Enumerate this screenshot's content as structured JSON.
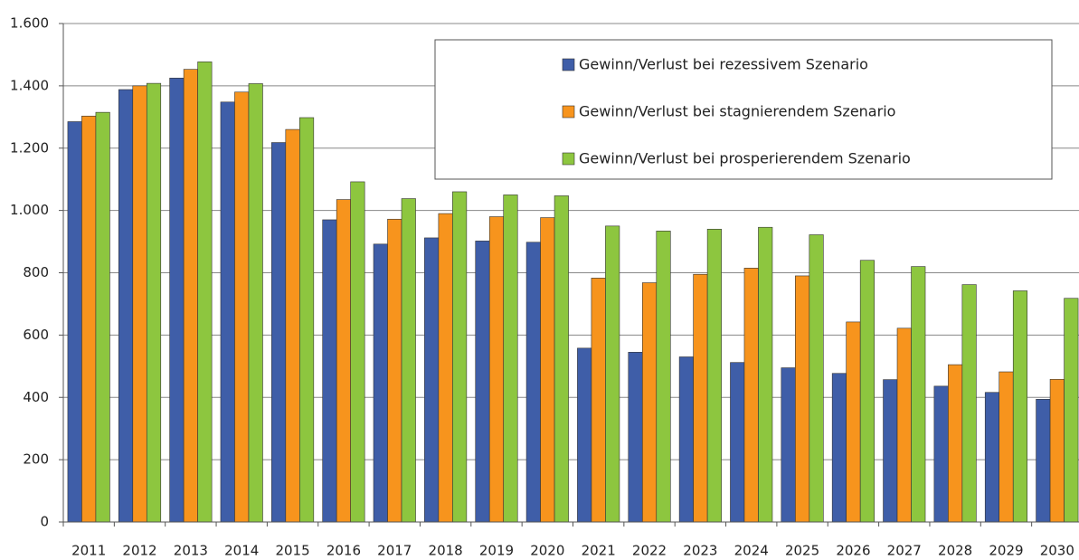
{
  "chart_data": {
    "type": "bar",
    "categories": [
      "2011",
      "2012",
      "2013",
      "2014",
      "2015",
      "2016",
      "2017",
      "2018",
      "2019",
      "2020",
      "2021",
      "2022",
      "2023",
      "2024",
      "2025",
      "2026",
      "2027",
      "2028",
      "2029",
      "2030"
    ],
    "series": [
      {
        "name": "Gewinn/Verlust bei rezessivem Szenario",
        "color": "#3f5ea8",
        "values": [
          1285,
          1388,
          1425,
          1348,
          1218,
          970,
          892,
          912,
          902,
          898,
          558,
          545,
          530,
          512,
          495,
          477,
          457,
          436,
          416,
          394
        ]
      },
      {
        "name": "Gewinn/Verlust bei stagnierendem Szenario",
        "color": "#f7941d",
        "values": [
          1303,
          1400,
          1453,
          1380,
          1260,
          1035,
          972,
          990,
          980,
          977,
          783,
          768,
          795,
          815,
          790,
          642,
          622,
          505,
          482,
          458
        ]
      },
      {
        "name": "Gewinn/Verlust bei prosperierendem Szenario",
        "color": "#8dc63f",
        "values": [
          1315,
          1408,
          1477,
          1407,
          1298,
          1092,
          1038,
          1060,
          1050,
          1047,
          950,
          934,
          940,
          946,
          922,
          840,
          820,
          762,
          742,
          718
        ]
      }
    ],
    "ylim": [
      0,
      1600
    ],
    "yticks": [
      0,
      200,
      400,
      600,
      800,
      {
        "value": 1000,
        "label": "1.000"
      },
      {
        "value": 1200,
        "label": "1.200"
      },
      {
        "value": 1400,
        "label": "1.400"
      },
      {
        "value": 1600,
        "label": "1.600"
      }
    ],
    "grid": true,
    "legend": "top-right"
  }
}
